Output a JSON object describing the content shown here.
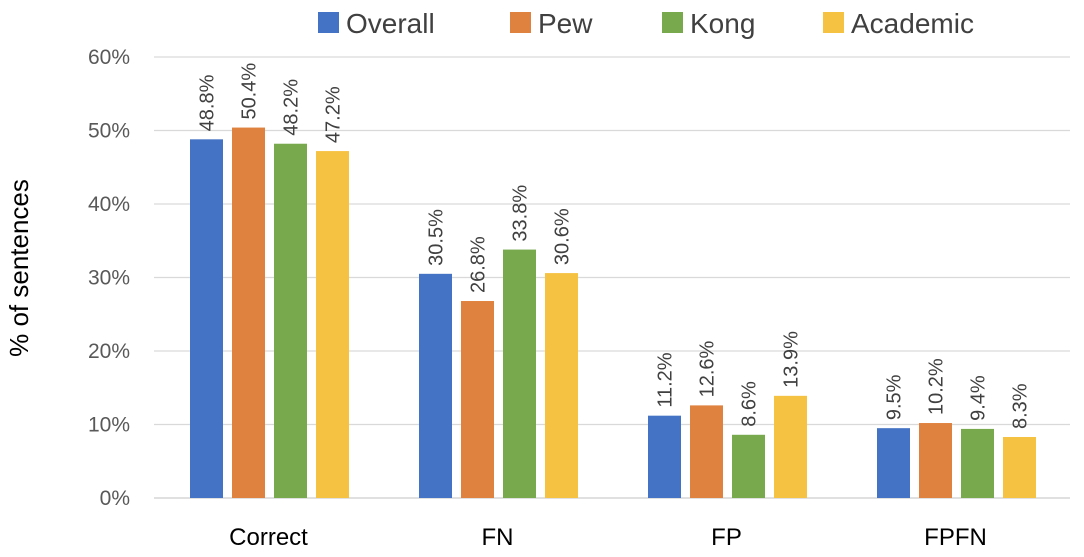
{
  "chart_data": {
    "type": "bar",
    "title": "",
    "ylabel": "% of sentences",
    "xlabel": "",
    "categories": [
      "Correct",
      "FN",
      "FP",
      "FPFN"
    ],
    "series": [
      {
        "name": "Overall",
        "color": "#4472c4",
        "values": [
          48.8,
          30.5,
          11.2,
          9.5
        ],
        "labels": [
          "48.8%",
          "30.5%",
          "11.2%",
          "9.5%"
        ]
      },
      {
        "name": "Pew",
        "color": "#e0823f",
        "values": [
          50.4,
          26.8,
          12.6,
          10.2
        ],
        "labels": [
          "50.4%",
          "26.8%",
          "12.6%",
          "10.2%"
        ]
      },
      {
        "name": "Kong",
        "color": "#78aa4d",
        "values": [
          48.2,
          33.8,
          8.6,
          9.4
        ],
        "labels": [
          "48.2%",
          "33.8%",
          "8.6%",
          "9.4%"
        ]
      },
      {
        "name": "Academic",
        "color": "#f5c242",
        "values": [
          47.2,
          30.6,
          13.9,
          8.3
        ],
        "labels": [
          "47.2%",
          "30.6%",
          "13.9%",
          "8.3%"
        ]
      }
    ],
    "ylim": [
      0,
      60
    ],
    "yticks": [
      "0%",
      "10%",
      "20%",
      "30%",
      "40%",
      "50%",
      "60%"
    ],
    "grid": true,
    "legend_position": "top"
  }
}
